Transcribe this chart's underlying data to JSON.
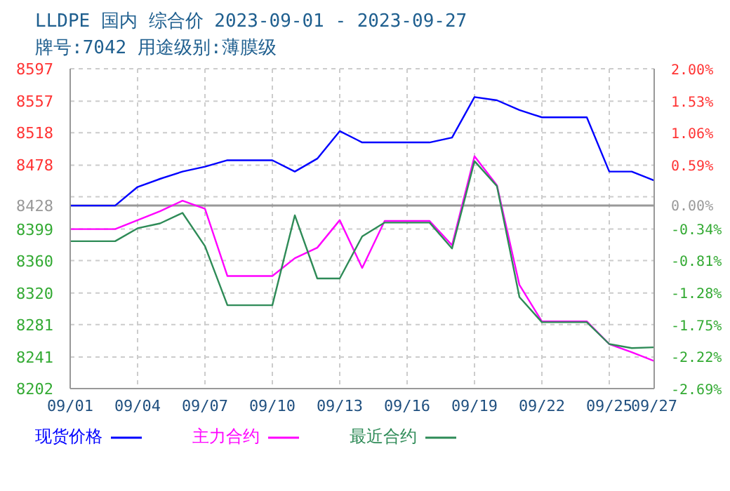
{
  "chart_data": {
    "type": "line",
    "title": "LLDPE 国内 综合价 2023-09-01 - 2023-09-27",
    "subtitle": "牌号:7042 用途级别:薄膜级",
    "categories": [
      "09/01",
      null,
      null,
      "09/04",
      null,
      null,
      "09/07",
      null,
      null,
      "09/10",
      null,
      null,
      "09/13",
      null,
      null,
      "09/16",
      null,
      null,
      "09/19",
      null,
      null,
      "09/22",
      null,
      null,
      "09/25",
      null,
      "09/27"
    ],
    "series": [
      {
        "name": "现货价格",
        "color": "#0000ff",
        "values": [
          8428,
          8428,
          8428,
          8451,
          8461,
          8470,
          8476,
          8484,
          8484,
          8484,
          8470,
          8486,
          8520,
          8506,
          8506,
          8506,
          8506,
          8512,
          8562,
          8558,
          8546,
          8537,
          8537,
          8537,
          8470,
          8470,
          8459
        ]
      },
      {
        "name": "主力合约",
        "color": "#ff00ff",
        "values": [
          8399,
          8399,
          8399,
          8410,
          8421,
          8434,
          8424,
          8341,
          8341,
          8341,
          8363,
          8376,
          8410,
          8351,
          8409,
          8409,
          8409,
          8379,
          8489,
          8453,
          8330,
          8285,
          8285,
          8285,
          8257,
          8247,
          8236
        ]
      },
      {
        "name": "最近合约",
        "color": "#2e8b57",
        "values": [
          8384,
          8384,
          8384,
          8400,
          8406,
          8419,
          8378,
          8305,
          8305,
          8305,
          8416,
          8338,
          8338,
          8390,
          8407,
          8407,
          8407,
          8375,
          8483,
          8452,
          8315,
          8284,
          8284,
          8284,
          8257,
          8252,
          8253
        ]
      }
    ],
    "ylim": [
      8202,
      8597
    ],
    "yticks": [
      8202,
      8241,
      8281,
      8320,
      8360,
      8399,
      8428,
      {
        "value": 8439,
        "label": null
      },
      8478,
      8518,
      8557,
      8597
    ],
    "y2lim": [
      -2.69,
      2.0
    ],
    "y2ticks": [
      {
        "value": -2.69,
        "label": "-2.69%"
      },
      {
        "value": -2.22,
        "label": "-2.22%"
      },
      {
        "value": -1.75,
        "label": "-1.75%"
      },
      {
        "value": -1.28,
        "label": "-1.28%"
      },
      {
        "value": -0.81,
        "label": "-0.81%"
      },
      {
        "value": -0.34,
        "label": "-0.34%"
      },
      {
        "value": 0,
        "label": "0.00%"
      },
      {
        "value": 0.59,
        "label": "0.59%"
      },
      {
        "value": 1.06,
        "label": "1.06%"
      },
      {
        "value": 1.53,
        "label": "1.53%"
      },
      {
        "value": 2.0,
        "label": "2.00%"
      }
    ],
    "ref_lines": [
      {
        "axis": "y",
        "value": 8428,
        "color": "#999999"
      }
    ],
    "grid": true,
    "legend": "bottom",
    "marker": "none",
    "line_style": "solid"
  }
}
